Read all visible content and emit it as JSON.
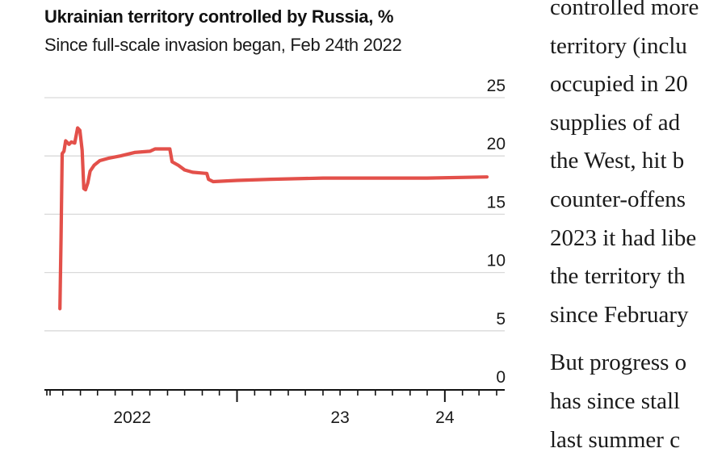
{
  "chart_data": {
    "type": "line",
    "title": "Ukrainian territory controlled by Russia, %",
    "subtitle": "Since full-scale invasion began, Feb 24th 2022",
    "xlabel": "",
    "ylabel": "",
    "ylim": [
      0,
      25
    ],
    "yticks": [
      "0",
      "5",
      "10",
      "15",
      "20",
      "25"
    ],
    "xtick_labels": [
      {
        "label": "2022",
        "date": "2022-07-01"
      },
      {
        "label": "23",
        "date": "2023-07-01"
      },
      {
        "label": "24",
        "date": "2024-01-01"
      }
    ],
    "xlim": [
      "2022-02-01",
      "2024-04-01"
    ],
    "grid": true,
    "colors": {
      "line": "#e3504a",
      "grid": "#d9d9d9",
      "axis": "#121212"
    },
    "series": [
      {
        "points": [
          [
            "2022-02-24",
            6.9
          ],
          [
            "2022-02-26",
            13.0
          ],
          [
            "2022-02-28",
            20.2
          ],
          [
            "2022-03-03",
            20.4
          ],
          [
            "2022-03-06",
            21.3
          ],
          [
            "2022-03-12",
            21.0
          ],
          [
            "2022-03-16",
            21.2
          ],
          [
            "2022-03-22",
            21.1
          ],
          [
            "2022-03-27",
            22.4
          ],
          [
            "2022-03-31",
            22.2
          ],
          [
            "2022-04-04",
            20.5
          ],
          [
            "2022-04-07",
            17.2
          ],
          [
            "2022-04-10",
            17.1
          ],
          [
            "2022-04-14",
            17.7
          ],
          [
            "2022-04-18",
            18.7
          ],
          [
            "2022-04-25",
            19.2
          ],
          [
            "2022-05-05",
            19.6
          ],
          [
            "2022-05-20",
            19.8
          ],
          [
            "2022-06-10",
            20.0
          ],
          [
            "2022-07-05",
            20.3
          ],
          [
            "2022-08-01",
            20.4
          ],
          [
            "2022-08-10",
            20.6
          ],
          [
            "2022-09-05",
            20.6
          ],
          [
            "2022-09-09",
            19.5
          ],
          [
            "2022-09-20",
            19.2
          ],
          [
            "2022-10-01",
            18.8
          ],
          [
            "2022-10-15",
            18.6
          ],
          [
            "2022-11-09",
            18.5
          ],
          [
            "2022-11-12",
            18.0
          ],
          [
            "2022-11-20",
            17.8
          ],
          [
            "2023-01-01",
            17.9
          ],
          [
            "2023-03-01",
            18.0
          ],
          [
            "2023-06-01",
            18.1
          ],
          [
            "2023-09-01",
            18.1
          ],
          [
            "2023-12-01",
            18.1
          ],
          [
            "2024-03-15",
            18.2
          ]
        ]
      }
    ]
  },
  "article": {
    "paragraph1_lines": [
      "controlled more",
      "territory (inclu",
      "occupied in 20",
      "supplies of ad",
      "the West, hit b",
      "counter-offens",
      "2023 it had libe",
      "the territory th",
      "since February"
    ],
    "paragraph2_lines": [
      "But progress o",
      "has since stall",
      "last summer c"
    ]
  }
}
